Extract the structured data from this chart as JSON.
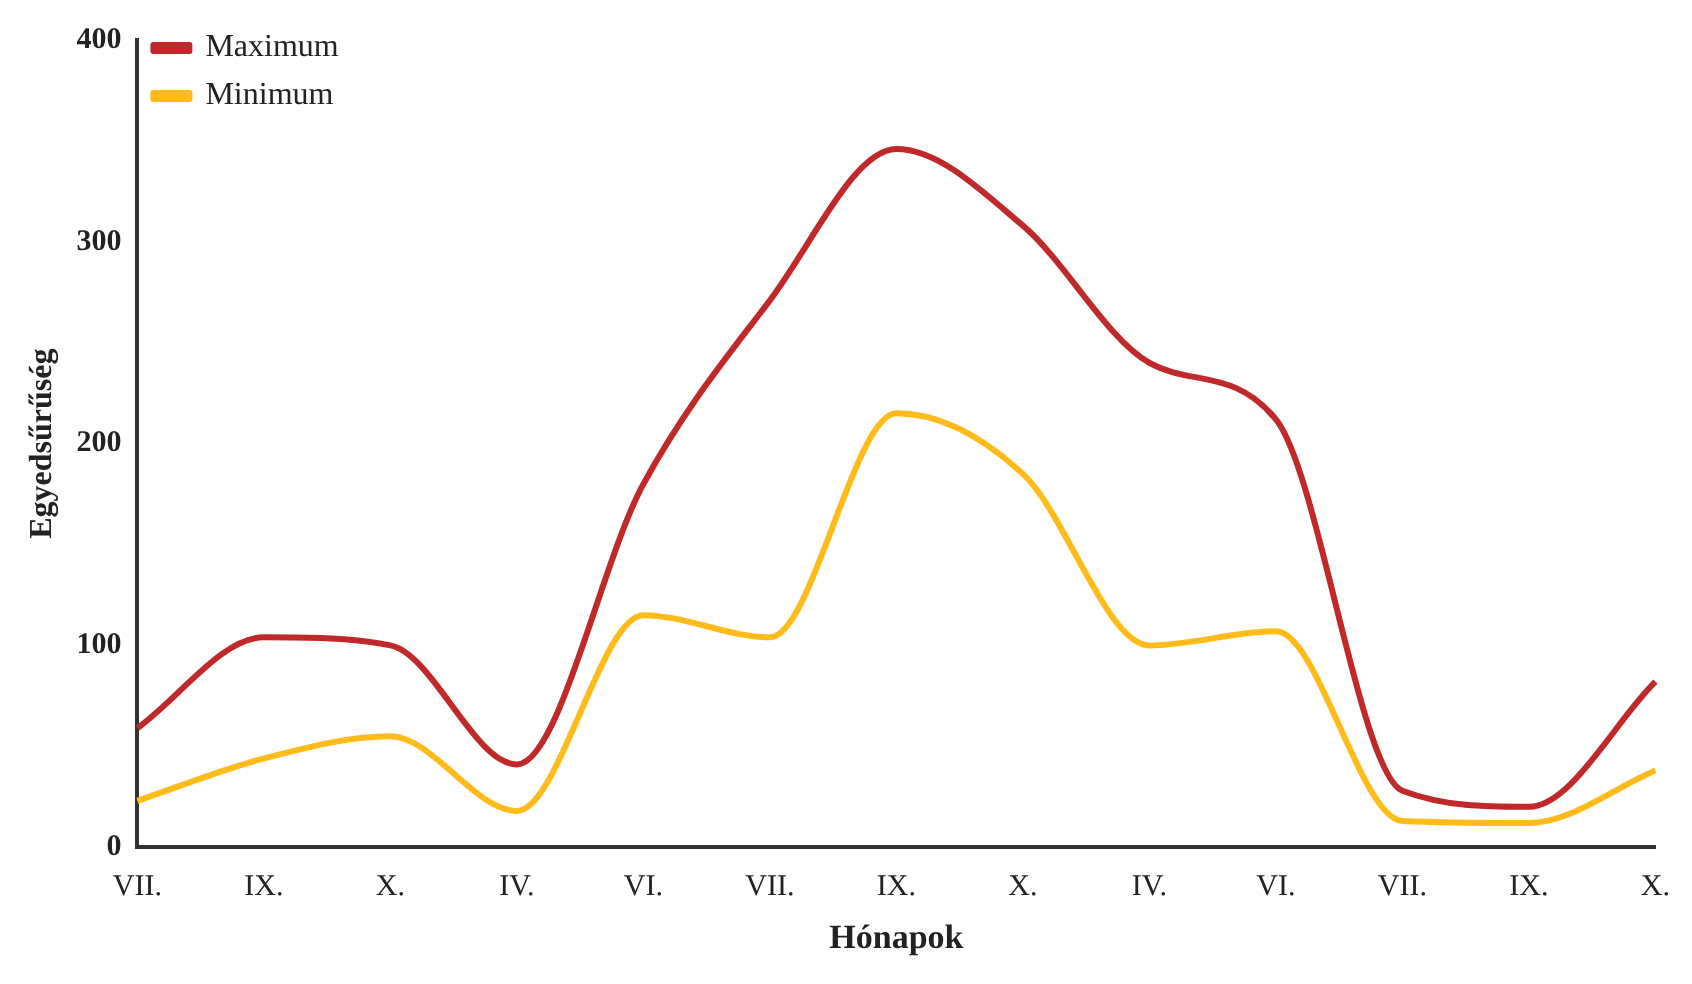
{
  "chart_data": {
    "type": "line",
    "xlabel": "Hónapok",
    "ylabel": "Egyedsűrűség",
    "categories": [
      "VII.",
      "IX.",
      "X.",
      "IV.",
      "VI.",
      "VII.",
      "IX.",
      "X.",
      "IV.",
      "VI.",
      "VII.",
      "IX.",
      "X."
    ],
    "series": [
      {
        "name": "Maximum",
        "color": "#c0282a",
        "values": [
          59,
          104,
          100,
          41,
          180,
          271,
          346,
          308,
          240,
          212,
          28,
          20,
          82
        ]
      },
      {
        "name": "Minimum",
        "color": "#ffbb1a",
        "values": [
          23,
          44,
          55,
          18,
          115,
          104,
          215,
          185,
          100,
          107,
          13,
          12,
          38
        ]
      }
    ],
    "ylim": [
      0,
      400
    ],
    "yticks": [
      0,
      100,
      200,
      300,
      400
    ],
    "grid": false,
    "legend": "top left",
    "marker": "none",
    "line_style": "solid"
  }
}
